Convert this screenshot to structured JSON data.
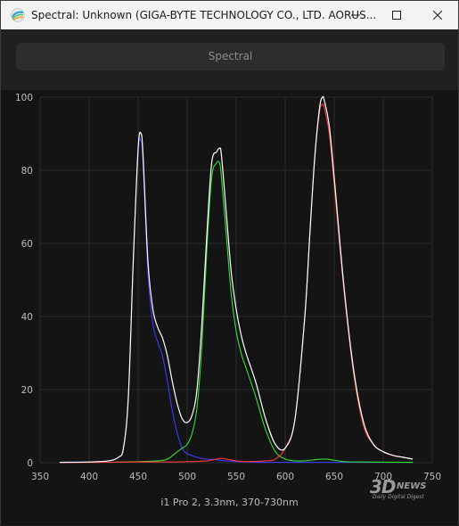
{
  "window": {
    "title": "Spectral: Unknown (GIGA-BYTE TECHNOLOGY CO., LTD. AORUS...",
    "icon": "spectral-app-icon",
    "controls": [
      "minimize-icon",
      "maximize-icon",
      "close-icon"
    ]
  },
  "tab": {
    "label": "Spectral"
  },
  "caption": "i1 Pro 2, 3.3nm, 370-730nm",
  "watermark": {
    "big": "3D",
    "news": "NEWS",
    "sub": "Daily Digital Digest"
  },
  "colors": {
    "white": "#ffffff",
    "red": "#ff3b3b",
    "green": "#33e033",
    "blue": "#3a3aff",
    "grid": "#2b2b2b",
    "axis_text": "#bdbdbd"
  },
  "chart_data": {
    "type": "line",
    "title": "",
    "xlabel": "",
    "ylabel": "",
    "xlim": [
      350,
      750
    ],
    "ylim": [
      0,
      100
    ],
    "x_ticks": [
      "350",
      "400",
      "450",
      "500",
      "550",
      "600",
      "650",
      "700",
      "750"
    ],
    "y_ticks": [
      "0",
      "20",
      "40",
      "60",
      "80",
      "100"
    ],
    "grid": true,
    "series": [
      {
        "color": "white",
        "x": [
          370,
          400,
          420,
          430,
          435,
          440,
          445,
          450,
          453,
          455,
          460,
          465,
          470,
          475,
          480,
          485,
          490,
          495,
          500,
          505,
          510,
          515,
          520,
          525,
          530,
          533,
          535,
          540,
          545,
          550,
          555,
          560,
          570,
          580,
          590,
          600,
          610,
          620,
          625,
          630,
          635,
          638,
          640,
          645,
          650,
          660,
          670,
          680,
          690,
          700,
          710,
          720,
          730
        ],
        "y": [
          0.1,
          0.2,
          0.5,
          1.5,
          4,
          18,
          55,
          86,
          90,
          84,
          55,
          42,
          37,
          34,
          29,
          22,
          16,
          12,
          11,
          13,
          20,
          38,
          62,
          82,
          85,
          86,
          84,
          68,
          52,
          42,
          35,
          30,
          22,
          12,
          5,
          4,
          12,
          40,
          62,
          83,
          97,
          100,
          99,
          92,
          78,
          48,
          25,
          11,
          5,
          3,
          2,
          1.5,
          1
        ]
      },
      {
        "color": "blue",
        "x": [
          370,
          400,
          420,
          430,
          435,
          440,
          445,
          450,
          453,
          455,
          460,
          465,
          470,
          475,
          480,
          485,
          490,
          495,
          500,
          510,
          520,
          530,
          540,
          560,
          580,
          600,
          650,
          730
        ],
        "y": [
          0.1,
          0.2,
          0.5,
          1.5,
          4,
          18,
          55,
          85,
          88,
          82,
          52,
          38,
          33,
          29,
          22,
          14,
          8,
          4,
          2.5,
          1.5,
          1,
          0.8,
          0.5,
          0.2,
          0.1,
          0.1,
          0.1,
          0.1
        ]
      },
      {
        "color": "green",
        "x": [
          420,
          450,
          470,
          480,
          490,
          495,
          500,
          505,
          510,
          515,
          520,
          525,
          530,
          533,
          535,
          540,
          545,
          550,
          555,
          560,
          570,
          580,
          590,
          600,
          610,
          620,
          640,
          660,
          680,
          730
        ],
        "y": [
          0.1,
          0.3,
          0.5,
          1,
          3,
          4,
          5,
          8,
          15,
          32,
          58,
          78,
          82,
          82,
          78,
          62,
          46,
          36,
          30,
          26,
          18,
          9,
          3,
          1,
          0.5,
          0.5,
          1,
          0.3,
          0.2,
          0.1
        ]
      },
      {
        "color": "red",
        "x": [
          370,
          450,
          490,
          520,
          530,
          535,
          540,
          550,
          560,
          580,
          590,
          600,
          610,
          620,
          625,
          630,
          635,
          638,
          640,
          645,
          650,
          660,
          670,
          680,
          690,
          700,
          710,
          720,
          730
        ],
        "y": [
          0,
          0.2,
          0.2,
          0.5,
          1,
          1.2,
          1,
          0.5,
          0.3,
          0.5,
          1,
          4,
          12,
          40,
          62,
          83,
          96,
          98,
          97,
          90,
          76,
          47,
          24,
          10,
          5,
          3,
          2,
          1.5,
          1
        ]
      }
    ]
  }
}
